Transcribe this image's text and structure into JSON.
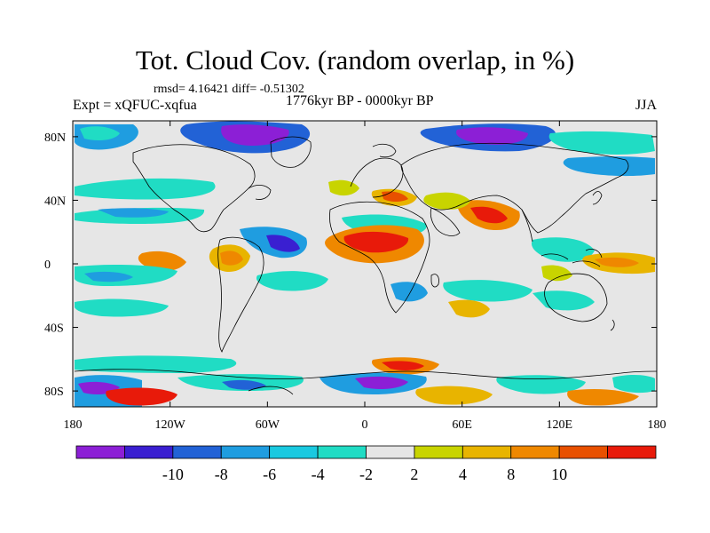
{
  "title": "Tot. Cloud Cov. (random overlap, in %)",
  "stats": "rmsd= 4.16421  diff= -0.51302",
  "experiment": "Expt = xQFUC-xqfua",
  "period": "1776kyr BP - 0000kyr BP",
  "season": "JJA",
  "map": {
    "projection": "cylindrical equidistant",
    "lon_range": [
      -180,
      180
    ],
    "lat_range": [
      -90,
      90
    ],
    "background_color": "#e6e6e6",
    "coastline_color": "#000000",
    "y_tick_labels": [
      {
        "lat": 80,
        "label": "80N"
      },
      {
        "lat": 40,
        "label": "40N"
      },
      {
        "lat": 0,
        "label": "0"
      },
      {
        "lat": -40,
        "label": "40S"
      },
      {
        "lat": -80,
        "label": "80S"
      }
    ],
    "x_tick_labels": [
      {
        "lon": -180,
        "label": "180"
      },
      {
        "lon": -120,
        "label": "120W"
      },
      {
        "lon": -60,
        "label": "60W"
      },
      {
        "lon": 0,
        "label": "0"
      },
      {
        "lon": 60,
        "label": "60E"
      },
      {
        "lon": 120,
        "label": "120E"
      },
      {
        "lon": 180,
        "label": "180"
      }
    ]
  },
  "colorbar": {
    "bins": [
      {
        "color": "#8c1fd6"
      },
      {
        "color": "#3a1fd1"
      },
      {
        "color": "#2262d6"
      },
      {
        "color": "#1f9de0"
      },
      {
        "color": "#19c9e0"
      },
      {
        "color": "#20dcc4"
      },
      {
        "color": "#e6e6e6"
      },
      {
        "color": "#c8d400"
      },
      {
        "color": "#e8b400"
      },
      {
        "color": "#ef8800"
      },
      {
        "color": "#e85000"
      },
      {
        "color": "#e81a0a"
      }
    ],
    "labels": [
      "-10",
      "-8",
      "-6",
      "-4",
      "-2",
      "2",
      "4",
      "8",
      "10"
    ]
  }
}
